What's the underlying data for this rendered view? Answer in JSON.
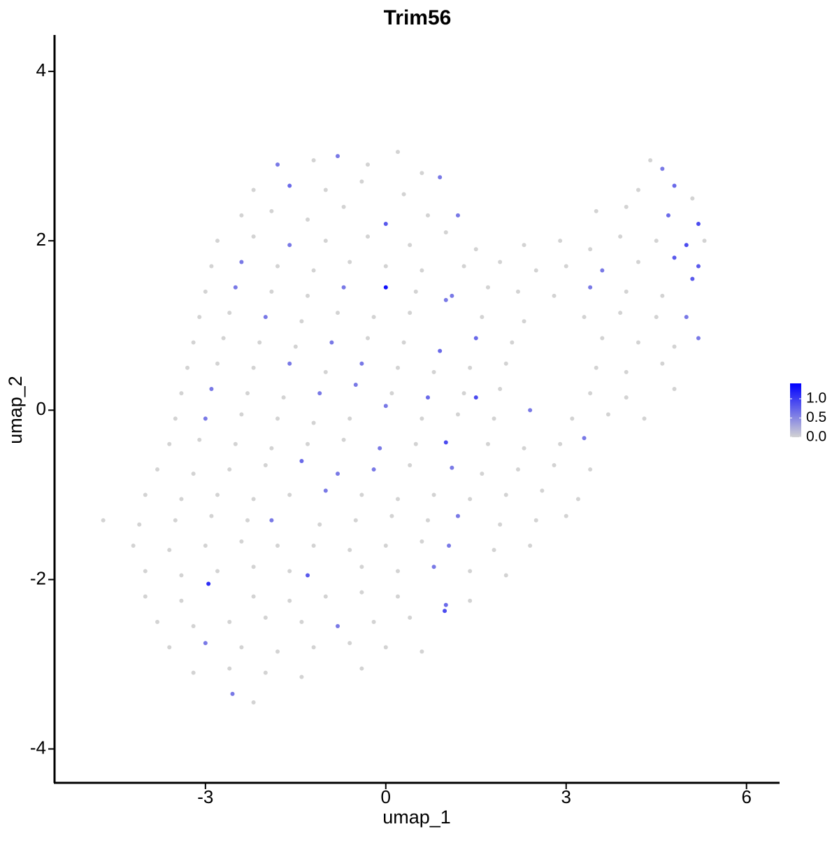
{
  "chart_data": {
    "type": "scatter",
    "title": "Trim56",
    "x_label": "umap_1",
    "y_label": "umap_2",
    "xlim": [
      -5.51,
      6.55
    ],
    "ylim": [
      -4.4,
      4.43
    ],
    "xticks": [
      -3,
      0,
      3,
      6
    ],
    "yticks": [
      -4,
      -2,
      0,
      2,
      4
    ],
    "clim": [
      0,
      1.4
    ],
    "colors": [
      "#d3d3d3",
      "#0000ff"
    ],
    "cticks": [
      {
        "value": 0,
        "label": "0.0"
      },
      {
        "value": 0.5,
        "label": "0.5"
      },
      {
        "value": 1,
        "label": "1.0"
      }
    ],
    "points": [
      [
        -1.8,
        2.9,
        0.6
      ],
      [
        -1.2,
        2.95,
        0
      ],
      [
        -0.8,
        3.0,
        0.6
      ],
      [
        -0.3,
        2.9,
        0
      ],
      [
        0.2,
        3.05,
        0
      ],
      [
        0.6,
        2.8,
        0
      ],
      [
        4.4,
        2.95,
        0
      ],
      [
        4.6,
        2.85,
        0.6
      ],
      [
        -2.2,
        2.6,
        0
      ],
      [
        -1.6,
        2.65,
        0.7
      ],
      [
        -1.0,
        2.6,
        0
      ],
      [
        -0.4,
        2.7,
        0
      ],
      [
        0.3,
        2.55,
        0
      ],
      [
        0.9,
        2.75,
        0.6
      ],
      [
        4.2,
        2.6,
        0
      ],
      [
        4.8,
        2.65,
        0.7
      ],
      [
        5.1,
        2.5,
        0
      ],
      [
        -2.4,
        2.3,
        0
      ],
      [
        -1.9,
        2.35,
        0
      ],
      [
        -1.3,
        2.25,
        0
      ],
      [
        -0.7,
        2.4,
        0
      ],
      [
        0,
        2.2,
        0.8
      ],
      [
        0.7,
        2.3,
        0
      ],
      [
        1.2,
        2.3,
        0.6
      ],
      [
        3.5,
        2.35,
        0
      ],
      [
        4.0,
        2.4,
        0
      ],
      [
        4.7,
        2.3,
        0.7
      ],
      [
        5.2,
        2.2,
        0.9
      ],
      [
        -2.8,
        2.0,
        0
      ],
      [
        -2.2,
        2.05,
        0
      ],
      [
        -1.6,
        1.95,
        0.6
      ],
      [
        -1.0,
        2.0,
        0
      ],
      [
        -0.3,
        2.05,
        0
      ],
      [
        0.4,
        1.95,
        0
      ],
      [
        1.0,
        2.1,
        0
      ],
      [
        1.5,
        1.9,
        0
      ],
      [
        2.3,
        1.95,
        0
      ],
      [
        2.9,
        2.0,
        0
      ],
      [
        3.4,
        1.9,
        0
      ],
      [
        3.9,
        2.05,
        0
      ],
      [
        4.5,
        2.0,
        0
      ],
      [
        5.0,
        1.95,
        0.9
      ],
      [
        5.3,
        2.0,
        0
      ],
      [
        -2.9,
        1.7,
        0
      ],
      [
        -2.4,
        1.75,
        0.6
      ],
      [
        -1.8,
        1.7,
        0
      ],
      [
        -1.2,
        1.65,
        0
      ],
      [
        -0.6,
        1.75,
        0
      ],
      [
        0,
        1.7,
        0
      ],
      [
        0.6,
        1.65,
        0
      ],
      [
        1.3,
        1.7,
        0
      ],
      [
        1.9,
        1.75,
        0
      ],
      [
        2.5,
        1.65,
        0
      ],
      [
        3.0,
        1.7,
        0
      ],
      [
        3.6,
        1.65,
        0.6
      ],
      [
        4.2,
        1.75,
        0
      ],
      [
        4.8,
        1.8,
        0.8
      ],
      [
        5.2,
        1.7,
        0.8
      ],
      [
        -3.0,
        1.4,
        0
      ],
      [
        -2.5,
        1.45,
        0.6
      ],
      [
        -1.9,
        1.4,
        0
      ],
      [
        -1.3,
        1.35,
        0
      ],
      [
        -0.7,
        1.45,
        0.6
      ],
      [
        0,
        1.45,
        1.3
      ],
      [
        0.5,
        1.4,
        0
      ],
      [
        1.1,
        1.35,
        0.6
      ],
      [
        1.7,
        1.45,
        0
      ],
      [
        2.2,
        1.4,
        0
      ],
      [
        2.8,
        1.35,
        0
      ],
      [
        3.4,
        1.45,
        0.6
      ],
      [
        4.0,
        1.4,
        0
      ],
      [
        4.6,
        1.35,
        0
      ],
      [
        5.1,
        1.55,
        0.8
      ],
      [
        -3.1,
        1.1,
        0
      ],
      [
        -2.6,
        1.15,
        0
      ],
      [
        -2.0,
        1.1,
        0.6
      ],
      [
        -1.4,
        1.05,
        0
      ],
      [
        -0.8,
        1.15,
        0
      ],
      [
        -0.2,
        1.1,
        0
      ],
      [
        0.4,
        1.15,
        0
      ],
      [
        1.0,
        1.3,
        0.6
      ],
      [
        1.6,
        1.1,
        0
      ],
      [
        2.3,
        1.05,
        0
      ],
      [
        3.3,
        1.1,
        0
      ],
      [
        3.9,
        1.15,
        0
      ],
      [
        4.5,
        1.1,
        0
      ],
      [
        5.0,
        1.1,
        0.6
      ],
      [
        -3.2,
        0.8,
        0
      ],
      [
        -2.7,
        0.85,
        0
      ],
      [
        -2.1,
        0.8,
        0
      ],
      [
        -1.5,
        0.75,
        0
      ],
      [
        -0.9,
        0.8,
        0.6
      ],
      [
        -0.3,
        0.85,
        0
      ],
      [
        0.3,
        0.8,
        0
      ],
      [
        0.9,
        0.7,
        0.7
      ],
      [
        1.5,
        0.85,
        0.7
      ],
      [
        2.1,
        0.8,
        0
      ],
      [
        3.6,
        0.85,
        0
      ],
      [
        4.2,
        0.8,
        0
      ],
      [
        4.8,
        0.75,
        0
      ],
      [
        5.2,
        0.85,
        0.6
      ],
      [
        -3.3,
        0.5,
        0
      ],
      [
        -2.8,
        0.55,
        0
      ],
      [
        -2.2,
        0.5,
        0
      ],
      [
        -1.6,
        0.55,
        0.6
      ],
      [
        -1.0,
        0.45,
        0
      ],
      [
        -0.4,
        0.55,
        0.6
      ],
      [
        0.2,
        0.5,
        0
      ],
      [
        0.8,
        0.45,
        0
      ],
      [
        1.4,
        0.5,
        0
      ],
      [
        2.0,
        0.55,
        0
      ],
      [
        3.5,
        0.5,
        0
      ],
      [
        4.0,
        0.45,
        0
      ],
      [
        4.6,
        0.55,
        0
      ],
      [
        -3.4,
        0.2,
        0
      ],
      [
        -2.9,
        0.25,
        0.6
      ],
      [
        -2.3,
        0.2,
        0
      ],
      [
        -1.7,
        0.15,
        0
      ],
      [
        -1.1,
        0.2,
        0.6
      ],
      [
        -0.5,
        0.3,
        0.6
      ],
      [
        0.1,
        0.2,
        0
      ],
      [
        0.7,
        0.15,
        0.7
      ],
      [
        1.3,
        0.2,
        0
      ],
      [
        1.5,
        0.15,
        0.9
      ],
      [
        1.9,
        0.25,
        0
      ],
      [
        3.4,
        0.2,
        0
      ],
      [
        4.0,
        0.15,
        0
      ],
      [
        4.8,
        0.25,
        0
      ],
      [
        -3.5,
        -0.1,
        0
      ],
      [
        -3.0,
        -0.1,
        0.6
      ],
      [
        -2.4,
        -0.05,
        0
      ],
      [
        -1.8,
        -0.1,
        0
      ],
      [
        -1.2,
        -0.15,
        0
      ],
      [
        -0.6,
        -0.1,
        0
      ],
      [
        0,
        0.05,
        0.6
      ],
      [
        0.6,
        -0.1,
        0
      ],
      [
        1.2,
        -0.05,
        0
      ],
      [
        1.8,
        -0.1,
        0
      ],
      [
        2.4,
        0.0,
        0.6
      ],
      [
        3.1,
        -0.1,
        0
      ],
      [
        3.7,
        -0.05,
        0
      ],
      [
        4.3,
        -0.1,
        0
      ],
      [
        -3.6,
        -0.4,
        0
      ],
      [
        -3.1,
        -0.35,
        0
      ],
      [
        -2.5,
        -0.4,
        0
      ],
      [
        -1.9,
        -0.45,
        0
      ],
      [
        -1.3,
        -0.4,
        0
      ],
      [
        -0.7,
        -0.35,
        0
      ],
      [
        -0.1,
        -0.45,
        0.6
      ],
      [
        0.5,
        -0.4,
        0
      ],
      [
        1.0,
        -0.38,
        0.9
      ],
      [
        1.7,
        -0.4,
        0
      ],
      [
        2.3,
        -0.45,
        0
      ],
      [
        2.9,
        -0.4,
        0
      ],
      [
        3.3,
        -0.33,
        0.6
      ],
      [
        -3.8,
        -0.7,
        0
      ],
      [
        -3.2,
        -0.75,
        0
      ],
      [
        -2.6,
        -0.7,
        0
      ],
      [
        -2.0,
        -0.65,
        0
      ],
      [
        -1.4,
        -0.6,
        0.7
      ],
      [
        -0.8,
        -0.75,
        0.6
      ],
      [
        -0.2,
        -0.7,
        0.6
      ],
      [
        0.4,
        -0.65,
        0
      ],
      [
        1.1,
        -0.68,
        0.6
      ],
      [
        1.6,
        -0.75,
        0
      ],
      [
        2.2,
        -0.7,
        0
      ],
      [
        2.8,
        -0.65,
        0
      ],
      [
        3.4,
        -0.7,
        0
      ],
      [
        -4.0,
        -1.0,
        0
      ],
      [
        -3.4,
        -1.05,
        0
      ],
      [
        -2.8,
        -1.0,
        0
      ],
      [
        -2.2,
        -1.05,
        0
      ],
      [
        -1.6,
        -1.0,
        0
      ],
      [
        -1.0,
        -0.95,
        0.6
      ],
      [
        -0.4,
        -1.0,
        0
      ],
      [
        0.2,
        -1.05,
        0
      ],
      [
        0.8,
        -1.0,
        0
      ],
      [
        1.4,
        -1.05,
        0
      ],
      [
        2.0,
        -1.0,
        0
      ],
      [
        2.6,
        -0.95,
        0
      ],
      [
        3.2,
        -1.05,
        0
      ],
      [
        -4.7,
        -1.3,
        0
      ],
      [
        -4.1,
        -1.35,
        0
      ],
      [
        -3.5,
        -1.3,
        0
      ],
      [
        -2.9,
        -1.25,
        0
      ],
      [
        -2.3,
        -1.3,
        0
      ],
      [
        -1.9,
        -1.3,
        0.6
      ],
      [
        -1.1,
        -1.35,
        0
      ],
      [
        -0.5,
        -1.3,
        0
      ],
      [
        0.1,
        -1.25,
        0
      ],
      [
        0.7,
        -1.3,
        0
      ],
      [
        1.2,
        -1.25,
        0.6
      ],
      [
        1.9,
        -1.35,
        0
      ],
      [
        2.5,
        -1.3,
        0
      ],
      [
        3.0,
        -1.25,
        0
      ],
      [
        -4.2,
        -1.6,
        0
      ],
      [
        -3.6,
        -1.65,
        0
      ],
      [
        -3.0,
        -1.6,
        0
      ],
      [
        -2.4,
        -1.55,
        0
      ],
      [
        -1.8,
        -1.6,
        0
      ],
      [
        -1.2,
        -1.6,
        0
      ],
      [
        -0.6,
        -1.65,
        0
      ],
      [
        0,
        -1.6,
        0
      ],
      [
        0.6,
        -1.55,
        0
      ],
      [
        1.05,
        -1.6,
        0.6
      ],
      [
        1.8,
        -1.65,
        0
      ],
      [
        2.4,
        -1.6,
        0
      ],
      [
        -4.0,
        -1.9,
        0
      ],
      [
        -3.4,
        -1.95,
        0
      ],
      [
        -2.8,
        -1.9,
        0
      ],
      [
        -2.2,
        -1.85,
        0
      ],
      [
        -1.6,
        -1.9,
        0
      ],
      [
        -1.3,
        -1.95,
        0.8
      ],
      [
        -0.4,
        -1.85,
        0
      ],
      [
        0.2,
        -1.9,
        0
      ],
      [
        0.8,
        -1.85,
        0.6
      ],
      [
        1.4,
        -1.9,
        0
      ],
      [
        2.0,
        -1.95,
        0
      ],
      [
        -4.0,
        -2.2,
        0
      ],
      [
        -3.4,
        -2.25,
        0
      ],
      [
        -2.95,
        -2.05,
        1.1
      ],
      [
        -2.2,
        -2.2,
        0
      ],
      [
        -1.6,
        -2.25,
        0
      ],
      [
        -1.0,
        -2.2,
        0
      ],
      [
        -0.4,
        -2.15,
        0
      ],
      [
        0.2,
        -2.2,
        0
      ],
      [
        1.0,
        -2.3,
        0.7
      ],
      [
        1.4,
        -2.25,
        0
      ],
      [
        -3.8,
        -2.5,
        0
      ],
      [
        -3.2,
        -2.55,
        0
      ],
      [
        -2.6,
        -2.5,
        0
      ],
      [
        -2.0,
        -2.45,
        0
      ],
      [
        -1.4,
        -2.5,
        0
      ],
      [
        -0.8,
        -2.55,
        0.6
      ],
      [
        -0.2,
        -2.5,
        0
      ],
      [
        0.4,
        -2.45,
        0
      ],
      [
        0.98,
        -2.37,
        0.9
      ],
      [
        -3.6,
        -2.8,
        0
      ],
      [
        -3.0,
        -2.75,
        0.6
      ],
      [
        -2.4,
        -2.8,
        0
      ],
      [
        -1.8,
        -2.85,
        0
      ],
      [
        -1.2,
        -2.8,
        0
      ],
      [
        -0.6,
        -2.75,
        0
      ],
      [
        0,
        -2.8,
        0
      ],
      [
        0.6,
        -2.85,
        0
      ],
      [
        -3.2,
        -3.1,
        0
      ],
      [
        -2.6,
        -3.05,
        0
      ],
      [
        -2.0,
        -3.1,
        0
      ],
      [
        -1.4,
        -3.15,
        0
      ],
      [
        -0.4,
        -3.05,
        0
      ],
      [
        -2.55,
        -3.35,
        0.6
      ],
      [
        -2.2,
        -3.45,
        0
      ]
    ]
  }
}
